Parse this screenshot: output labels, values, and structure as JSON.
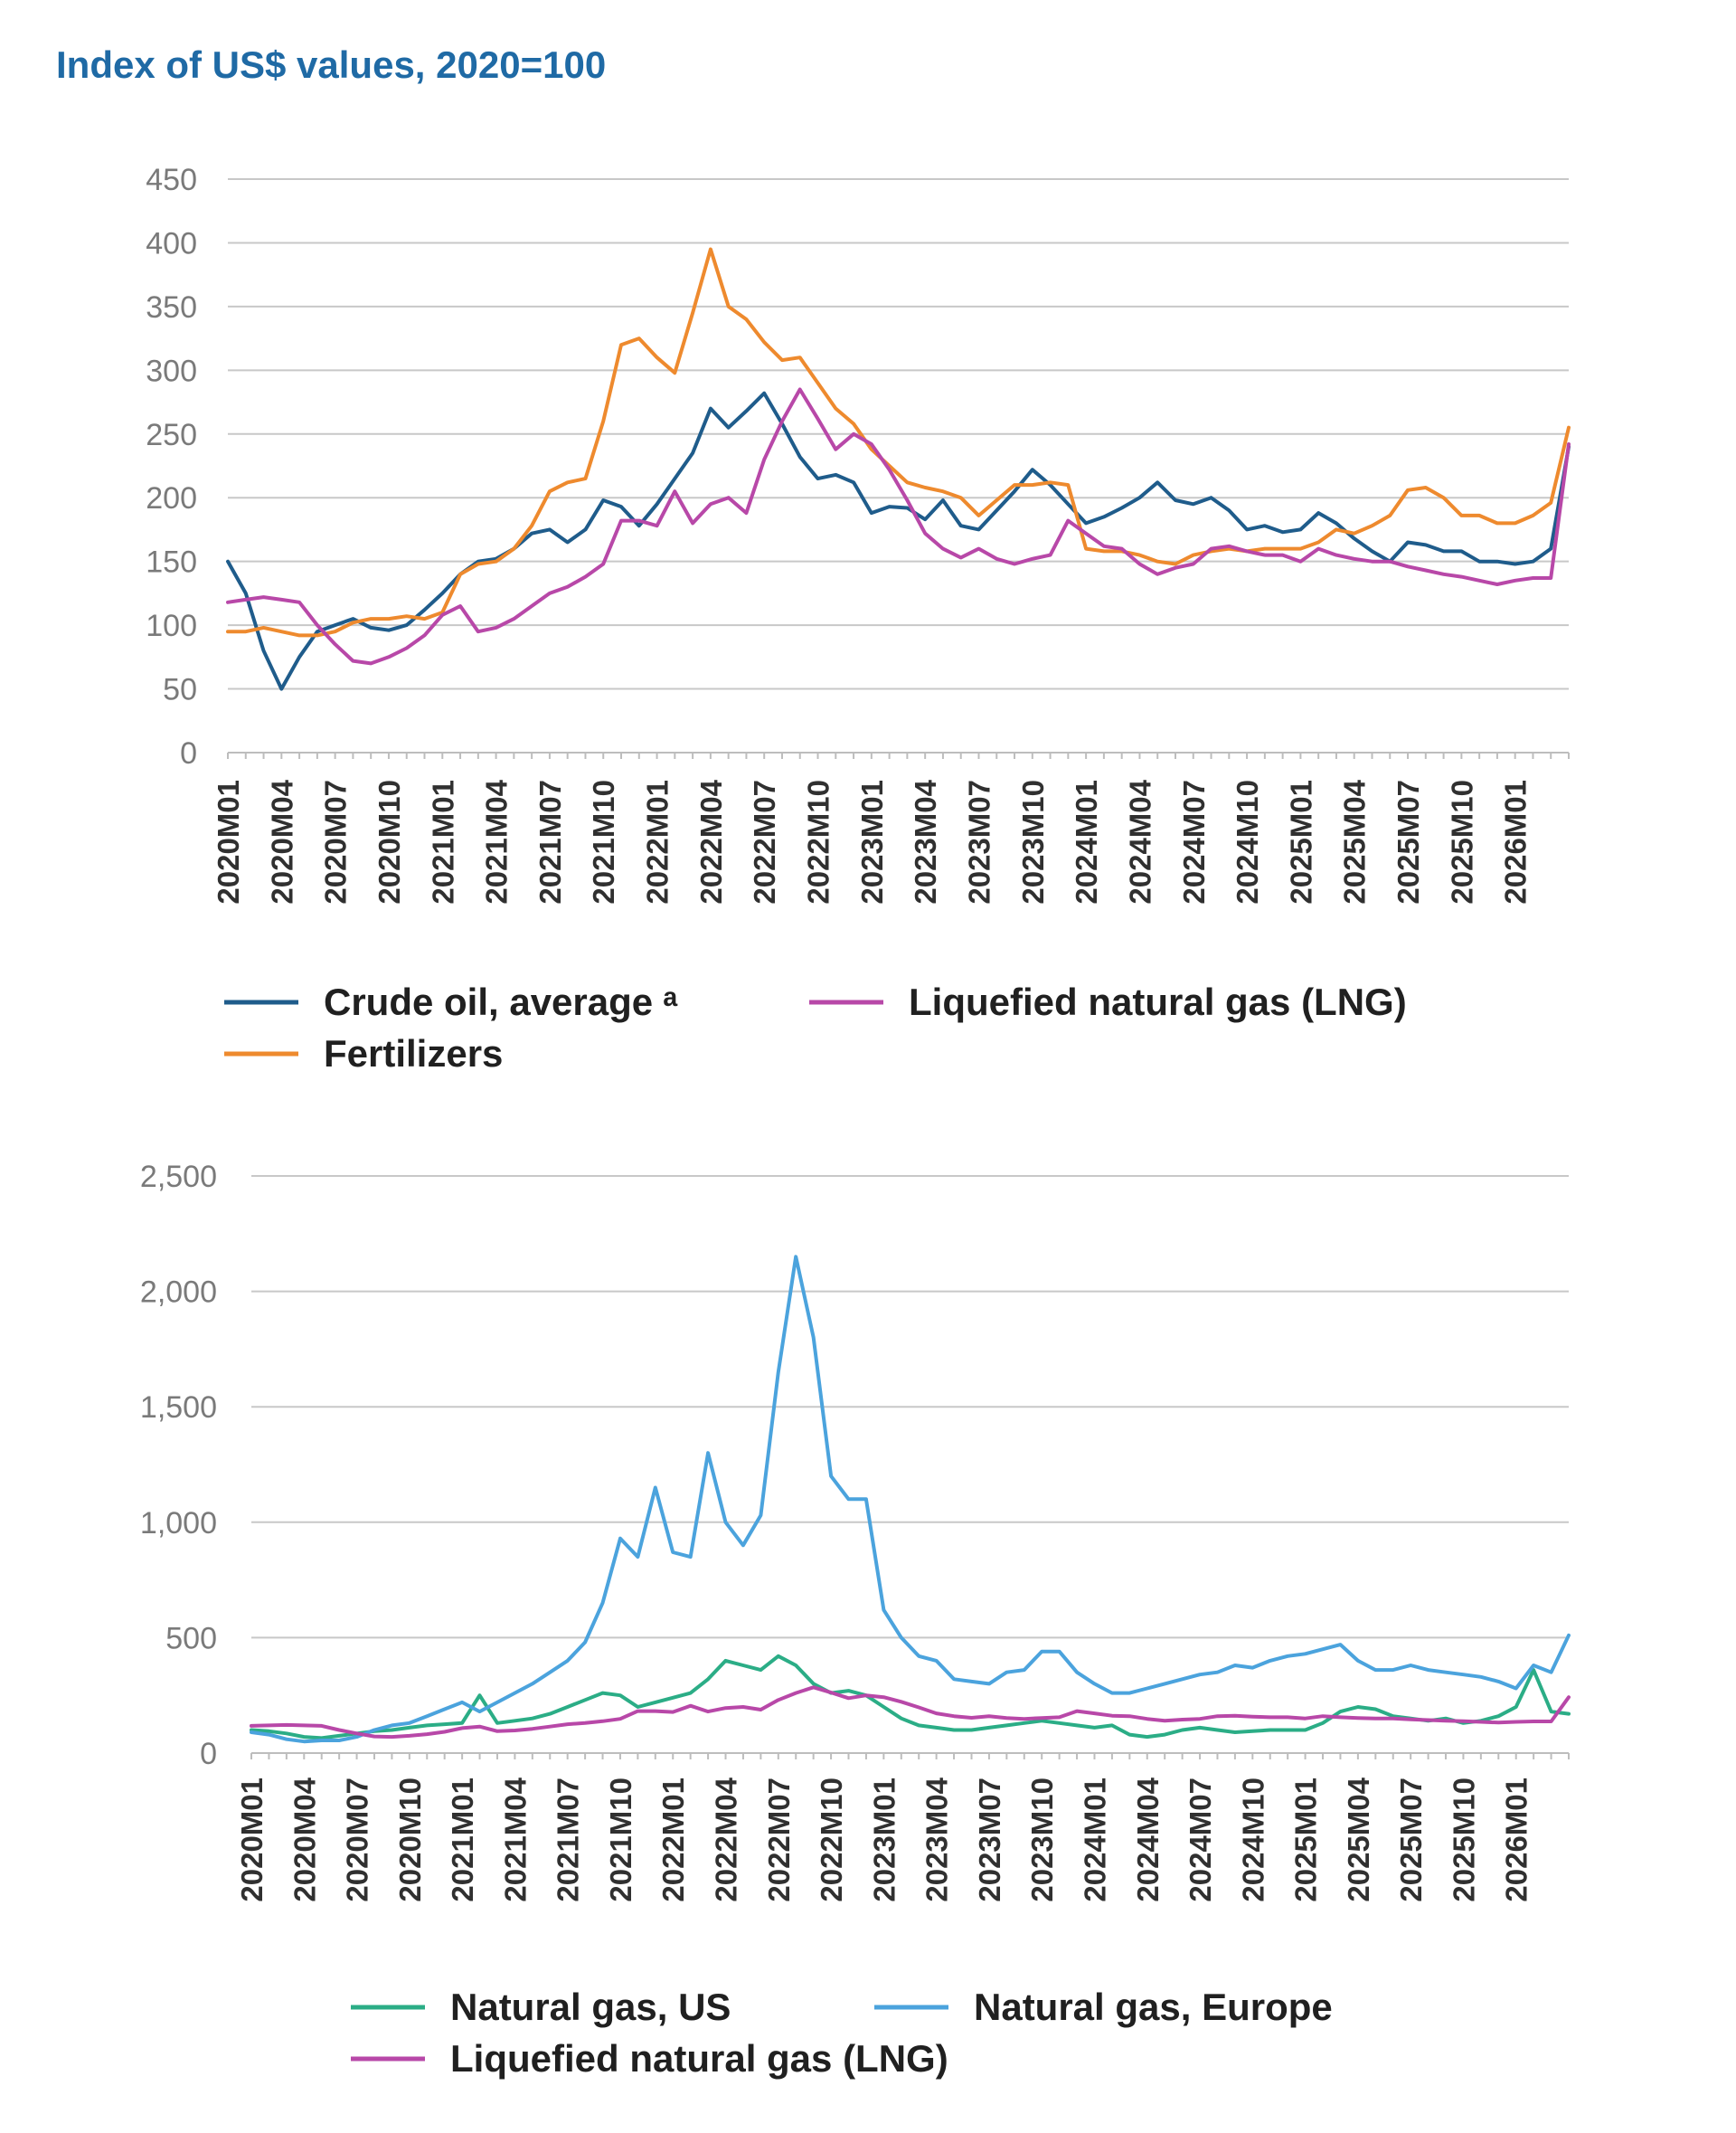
{
  "title": "Index of US$ values, 2020=100",
  "colors": {
    "crude": "#1f5c8b",
    "fert": "#ee8a2e",
    "lng": "#b848a8",
    "us": "#2bad86",
    "europe": "#4ba3dd",
    "grid": "#c8c8c8",
    "axis": "#bdbdbd"
  },
  "chart_data": [
    {
      "type": "line",
      "title": "",
      "xlabel": "",
      "ylabel": "",
      "ylim": [
        0,
        450
      ],
      "yticks": [
        "0",
        "50",
        "100",
        "150",
        "200",
        "250",
        "300",
        "350",
        "400",
        "450"
      ],
      "ytick_values": [
        0,
        50,
        100,
        150,
        200,
        250,
        300,
        350,
        400,
        450
      ],
      "xtick_labels": [
        "2020M01",
        "2020M04",
        "2020M07",
        "2020M10",
        "2021M01",
        "2021M04",
        "2021M07",
        "2021M10",
        "2022M01",
        "2022M04",
        "2022M07",
        "2022M10",
        "2023M01",
        "2023M04",
        "2023M07",
        "2023M10",
        "2024M01",
        "2024M04",
        "2024M07",
        "2024M10",
        "2025M01",
        "2025M04",
        "2025M07",
        "2025M10",
        "2026M01"
      ],
      "n_points": 76,
      "grid": true,
      "legend_position": "bottom",
      "legend": [
        "Crude oil, average ᵃ",
        "Liquefied natural gas (LNG)",
        "Fertilizers"
      ],
      "series": [
        {
          "name": "Crude oil, average ᵃ",
          "color_key": "crude",
          "values": [
            150,
            125,
            80,
            50,
            75,
            95,
            100,
            105,
            98,
            96,
            100,
            112,
            125,
            140,
            150,
            152,
            160,
            172,
            175,
            165,
            175,
            198,
            193,
            178,
            195,
            215,
            235,
            270,
            255,
            268,
            282,
            258,
            232,
            215,
            218,
            212,
            188,
            193,
            192,
            183,
            198,
            178,
            175,
            190,
            205,
            222,
            210,
            195,
            180,
            185,
            192,
            200,
            212,
            198,
            195,
            200,
            190,
            175,
            178,
            173,
            175,
            188,
            180,
            168,
            158,
            150,
            165,
            163,
            158,
            158,
            150,
            150,
            148,
            150,
            160,
            240
          ]
        },
        {
          "name": "Fertilizers",
          "color_key": "fert",
          "values": [
            95,
            95,
            98,
            95,
            92,
            92,
            95,
            102,
            105,
            105,
            107,
            105,
            110,
            140,
            148,
            150,
            160,
            178,
            205,
            212,
            215,
            260,
            320,
            325,
            310,
            298,
            345,
            395,
            350,
            340,
            322,
            308,
            310,
            290,
            270,
            258,
            238,
            225,
            212,
            208,
            205,
            200,
            186,
            198,
            210,
            210,
            212,
            210,
            160,
            158,
            158,
            155,
            150,
            148,
            155,
            158,
            160,
            158,
            160,
            160,
            160,
            165,
            175,
            172,
            178,
            186,
            206,
            208,
            200,
            186,
            186,
            180,
            180,
            186,
            196,
            255
          ]
        },
        {
          "name": "Liquefied natural gas (LNG)",
          "color_key": "lng",
          "values": [
            118,
            120,
            122,
            120,
            118,
            100,
            85,
            72,
            70,
            75,
            82,
            92,
            108,
            115,
            95,
            98,
            105,
            115,
            125,
            130,
            138,
            148,
            182,
            182,
            178,
            205,
            180,
            195,
            200,
            188,
            230,
            260,
            285,
            262,
            238,
            250,
            242,
            222,
            198,
            172,
            160,
            153,
            160,
            152,
            148,
            152,
            155,
            182,
            172,
            162,
            160,
            148,
            140,
            145,
            148,
            160,
            162,
            158,
            155,
            155,
            150,
            160,
            155,
            152,
            150,
            150,
            146,
            143,
            140,
            138,
            135,
            132,
            135,
            137,
            137,
            242
          ]
        }
      ]
    },
    {
      "type": "line",
      "title": "",
      "xlabel": "",
      "ylabel": "",
      "ylim": [
        0,
        2500
      ],
      "yticks": [
        "0",
        "500",
        "1,000",
        "1,500",
        "2,000",
        "2,500"
      ],
      "ytick_values": [
        0,
        500,
        1000,
        1500,
        2000,
        2500
      ],
      "xtick_labels": [
        "2020M01",
        "2020M04",
        "2020M07",
        "2020M10",
        "2021M01",
        "2021M04",
        "2021M07",
        "2021M10",
        "2022M01",
        "2022M04",
        "2022M07",
        "2022M10",
        "2023M01",
        "2023M04",
        "2023M07",
        "2023M10",
        "2024M01",
        "2024M04",
        "2024M07",
        "2024M10",
        "2025M01",
        "2025M04",
        "2025M07",
        "2025M10",
        "2026M01"
      ],
      "n_points": 76,
      "grid": true,
      "legend_position": "bottom",
      "legend": [
        "Natural gas, US",
        "Natural gas, Europe",
        "Liquefied natural gas (LNG)"
      ],
      "series": [
        {
          "name": "Natural gas, US",
          "color_key": "us",
          "values": [
            100,
            95,
            85,
            70,
            65,
            75,
            85,
            95,
            100,
            110,
            120,
            125,
            130,
            250,
            130,
            140,
            150,
            170,
            200,
            230,
            260,
            250,
            200,
            220,
            240,
            260,
            320,
            400,
            380,
            360,
            420,
            380,
            300,
            260,
            270,
            250,
            200,
            150,
            120,
            110,
            100,
            100,
            110,
            120,
            130,
            140,
            130,
            120,
            110,
            120,
            80,
            70,
            80,
            100,
            110,
            100,
            90,
            95,
            100,
            100,
            100,
            130,
            180,
            200,
            190,
            160,
            150,
            140,
            150,
            130,
            140,
            160,
            200,
            360,
            180,
            170
          ]
        },
        {
          "name": "Natural gas, Europe",
          "color_key": "europe",
          "values": [
            90,
            80,
            60,
            50,
            55,
            55,
            70,
            100,
            120,
            130,
            160,
            190,
            220,
            180,
            220,
            260,
            300,
            350,
            400,
            480,
            650,
            930,
            850,
            1150,
            870,
            850,
            1300,
            1000,
            900,
            1030,
            1650,
            2150,
            1800,
            1200,
            1100,
            1100,
            620,
            500,
            420,
            400,
            320,
            310,
            300,
            350,
            360,
            440,
            440,
            350,
            300,
            260,
            260,
            280,
            300,
            320,
            340,
            350,
            380,
            370,
            400,
            420,
            430,
            450,
            470,
            400,
            360,
            360,
            380,
            360,
            350,
            340,
            330,
            310,
            280,
            380,
            350,
            510
          ]
        },
        {
          "name": "Liquefied natural gas (LNG)",
          "color_key": "lng",
          "values": [
            118,
            120,
            122,
            120,
            118,
            100,
            85,
            72,
            70,
            75,
            82,
            92,
            108,
            115,
            95,
            98,
            105,
            115,
            125,
            130,
            138,
            148,
            182,
            182,
            178,
            205,
            180,
            195,
            200,
            188,
            230,
            260,
            285,
            262,
            238,
            250,
            242,
            222,
            198,
            172,
            160,
            153,
            160,
            152,
            148,
            152,
            155,
            182,
            172,
            162,
            160,
            148,
            140,
            145,
            148,
            160,
            162,
            158,
            155,
            155,
            150,
            160,
            155,
            152,
            150,
            150,
            146,
            143,
            140,
            138,
            135,
            132,
            135,
            137,
            137,
            242
          ]
        }
      ]
    }
  ]
}
